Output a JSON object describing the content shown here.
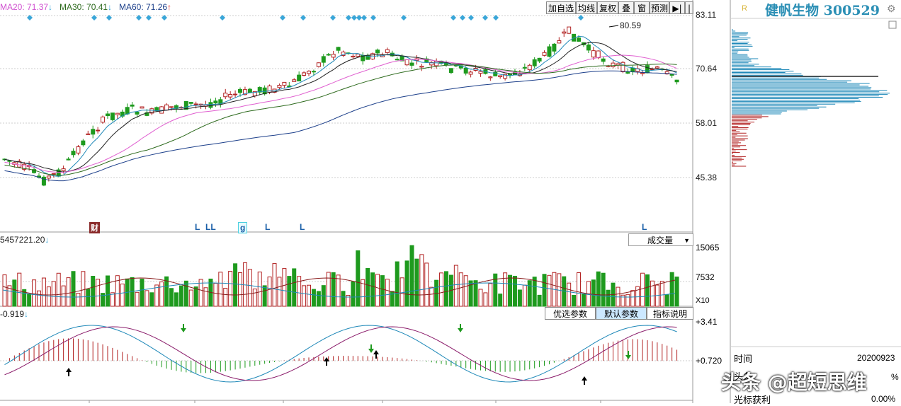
{
  "indicators": {
    "ma20": "MA20: 71.37",
    "ma20_arrow": "↓",
    "ma30": "MA30: 70.41",
    "ma30_arrow": "↓",
    "ma60": "MA60: 71.26",
    "ma60_arrow": "↑"
  },
  "toolbar": {
    "add_watch": "加自选",
    "ma_line": "均线",
    "adjust": "复权",
    "overlay": "叠",
    "window": "窗",
    "forecast": "预测",
    "nav": "▶|"
  },
  "stock": {
    "rating": "R",
    "title": "健帆生物 300529"
  },
  "price_axis": {
    "high": "83.11",
    "mid1": "70.64",
    "mid2": "58.01",
    "low": "45.38"
  },
  "peak_label": "80.59",
  "event_markers": [
    {
      "label": "财"
    },
    {
      "label": "L"
    },
    {
      "label": "LL"
    },
    {
      "label": "g"
    },
    {
      "label": "L"
    },
    {
      "label": "L"
    },
    {
      "label": "L"
    }
  ],
  "volume": {
    "header": "5457221.20",
    "header_arrow": "↓",
    "selector": "成交量",
    "axis_high": "15065",
    "axis_mid": "7532",
    "unit": "X10"
  },
  "macd": {
    "header": "-0.919",
    "header_arrow": "↓",
    "axis_high": "+3.41",
    "axis_mid": "+0.720",
    "btn_optimize": "优选参数",
    "btn_default": "默认参数",
    "btn_help": "指标说明"
  },
  "side_panel": {
    "time_label": "时间",
    "time_value": "20200923",
    "row2_label": "头条",
    "row2_value": "%",
    "row3_label": "光标获利",
    "row3_value": "0.00%"
  },
  "watermark": "头条 @超短思维",
  "colors": {
    "up": "#b22222",
    "down": "#1e9a1e",
    "ma_blue": "#1e88b8",
    "ma_pink": "#e05fd0",
    "ma_green": "#2d6a1d",
    "ma_navy": "#1c3f8a",
    "diamond": "#3aa6d8"
  }
}
